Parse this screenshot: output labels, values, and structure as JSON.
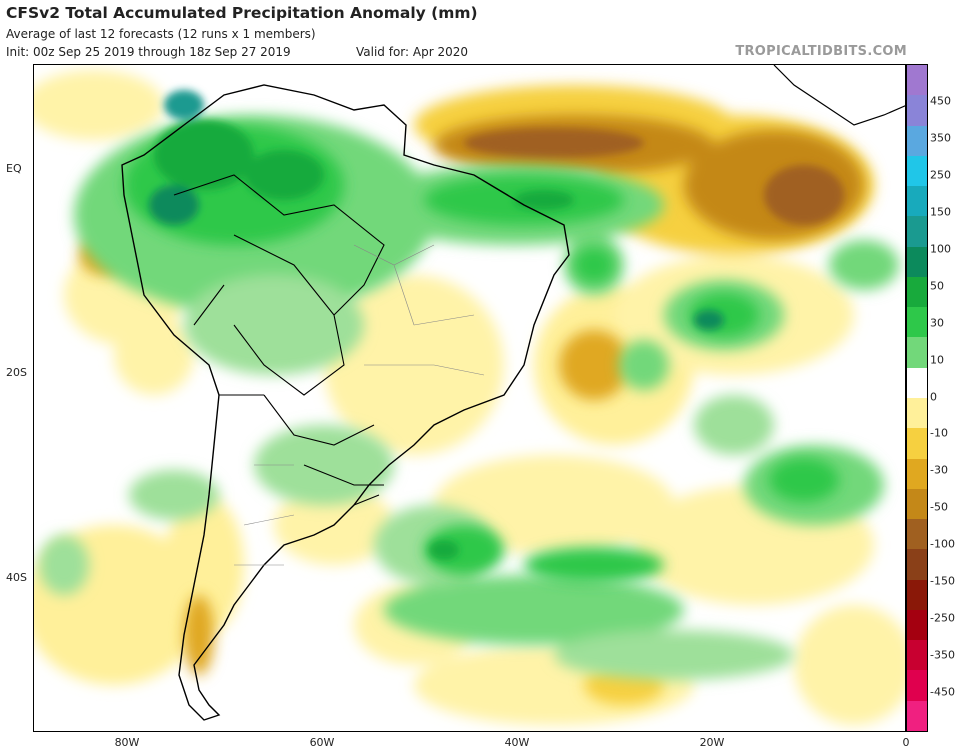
{
  "header": {
    "title": "CFSv2 Total Accumulated Precipitation Anomaly (mm)",
    "subtitle": "Average of last 12 forecasts (12 runs x 1 members)",
    "init": "Init: 00z Sep 25 2019 through 18z Sep 27 2019",
    "valid": "Valid for: Apr 2020",
    "source": "TROPICALTIDBITS.COM"
  },
  "axes": {
    "lat_labels": [
      "EQ",
      "20S",
      "40S"
    ],
    "lon_labels": [
      "80W",
      "60W",
      "40W",
      "20W",
      "0"
    ]
  },
  "colorbar": {
    "labels": [
      "450",
      "350",
      "250",
      "150",
      "100",
      "50",
      "30",
      "10",
      "0",
      "-10",
      "-30",
      "-50",
      "-100",
      "-150",
      "-250",
      "-350",
      "-450"
    ],
    "colors": [
      "#a078d0",
      "#8a84d8",
      "#5aa8e0",
      "#20c6e8",
      "#18aabc",
      "#1a9a90",
      "#0c8a5c",
      "#18aa3c",
      "#2ec84a",
      "#72d87a",
      "#ffffff",
      "#fff09a",
      "#f6d040",
      "#e0a820",
      "#c48818",
      "#a06020",
      "#8a4018",
      "#8a1808",
      "#a40010",
      "#c80030",
      "#e0004e",
      "#f02080"
    ]
  }
}
